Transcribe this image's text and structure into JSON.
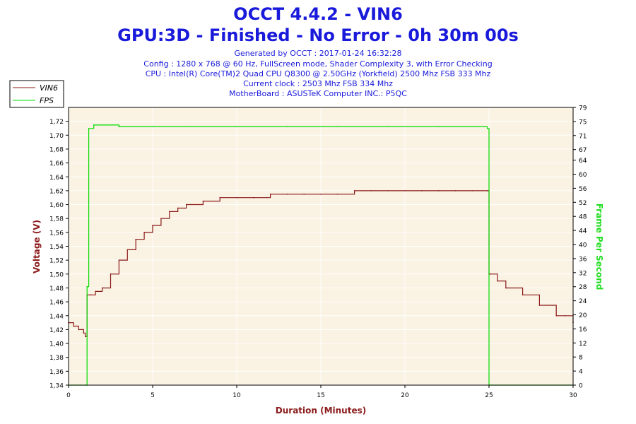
{
  "header": {
    "title": "OCCT 4.4.2 - VIN6",
    "subtitle": "GPU:3D - Finished - No Error - 0h 30m 00s",
    "info_lines": [
      "Generated by OCCT : 2017-01-24 16:32:28",
      "Config : 1280 x 768 @ 60 Hz, FullScreen mode, Shader Complexity 3, with Error Checking",
      "CPU : Intel(R) Core(TM)2 Quad CPU Q8300 @ 2.50GHz (Yorkfield) 2500 Mhz FSB 333 Mhz",
      "Current clock : 2503 Mhz FSB 334 Mhz",
      "MotherBoard : ASUSTeK Computer INC.: P5QC"
    ]
  },
  "colors": {
    "vin6": "#8b1a1a",
    "fps": "#00dd00",
    "plot_bg": "#faf2e2",
    "grid": "#ffffff",
    "title": "#1a1adb",
    "ylabel_left": "#8b1a1a",
    "ylabel_right": "#22dd22",
    "xlabel": "#8b1a1a"
  },
  "chart_data": {
    "type": "line",
    "xlabel": "Duration (Minutes)",
    "ylabel": "Voltage (V)",
    "y2label": "Frame Per Second",
    "xlim": [
      0,
      30
    ],
    "ylim": [
      1.34,
      1.74
    ],
    "y2lim": [
      0,
      79
    ],
    "grid": true,
    "legend_position": "top-left",
    "x_ticks": [
      "0",
      "5",
      "10",
      "15",
      "20",
      "25",
      "30"
    ],
    "y_ticks": [
      "1,34",
      "1,36",
      "1,38",
      "1,40",
      "1,42",
      "1,44",
      "1,46",
      "1,48",
      "1,50",
      "1,52",
      "1,54",
      "1,56",
      "1,58",
      "1,60",
      "1,62",
      "1,64",
      "1,66",
      "1,68",
      "1,70",
      "1,72"
    ],
    "y2_ticks": [
      "0",
      "4",
      "8",
      "12",
      "16",
      "20",
      "24",
      "28",
      "32",
      "36",
      "40",
      "44",
      "48",
      "52",
      "56",
      "60",
      "64",
      "67",
      "71",
      "75",
      "79"
    ],
    "series": [
      {
        "name": "VIN6",
        "axis": "left",
        "x": [
          0,
          0.3,
          0.6,
          0.9,
          1.0,
          1.1,
          1.3,
          1.6,
          2.0,
          2.5,
          3.0,
          3.5,
          4.0,
          4.5,
          5.0,
          5.5,
          6.0,
          6.5,
          7.0,
          8.0,
          9.0,
          10.0,
          11.0,
          12.0,
          13.0,
          14.0,
          15.0,
          16.0,
          17.0,
          18.0,
          19.0,
          20.0,
          21.0,
          22.0,
          23.0,
          24.0,
          24.9,
          25.0,
          25.1,
          25.5,
          26.0,
          27.0,
          28.0,
          29.0,
          29.5,
          30.0
        ],
        "y": [
          1.43,
          1.425,
          1.42,
          1.415,
          1.41,
          1.47,
          1.47,
          1.475,
          1.48,
          1.5,
          1.52,
          1.535,
          1.55,
          1.56,
          1.57,
          1.58,
          1.59,
          1.595,
          1.6,
          1.605,
          1.61,
          1.61,
          1.61,
          1.615,
          1.615,
          1.615,
          1.615,
          1.615,
          1.62,
          1.62,
          1.62,
          1.62,
          1.62,
          1.62,
          1.62,
          1.62,
          1.62,
          1.5,
          1.5,
          1.49,
          1.48,
          1.47,
          1.455,
          1.44,
          1.44,
          1.43
        ]
      },
      {
        "name": "FPS",
        "axis": "right",
        "x": [
          0,
          1.05,
          1.1,
          1.2,
          1.5,
          3,
          5,
          7,
          10,
          13,
          16,
          19,
          22,
          24.9,
          25.0,
          30
        ],
        "y": [
          0,
          0,
          28,
          73,
          74,
          73.5,
          73.5,
          73.5,
          73.5,
          73.5,
          73.5,
          73.5,
          73.5,
          73,
          0,
          0
        ]
      }
    ]
  }
}
